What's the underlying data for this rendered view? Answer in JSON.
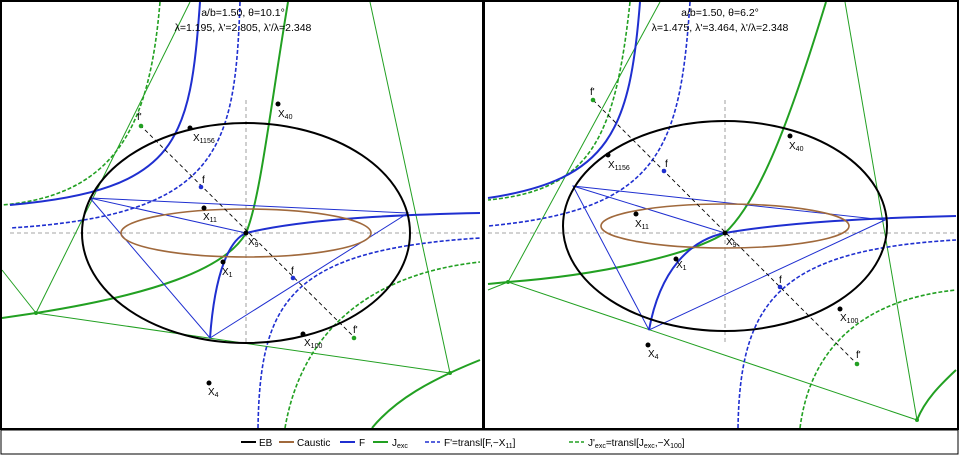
{
  "panels": [
    {
      "title_line1": "a/b=1.50, θ=10.1°",
      "title_line2": "λ=1.195, λ'=2.805, λ'/λ=2.348",
      "points": [
        {
          "text": "X",
          "sub": "1156"
        },
        {
          "text": "X",
          "sub": "11"
        },
        {
          "text": "X",
          "sub": "9"
        },
        {
          "text": "X",
          "sub": "1"
        },
        {
          "text": "X",
          "sub": "40"
        },
        {
          "text": "X",
          "sub": "100"
        },
        {
          "text": "X",
          "sub": "4"
        },
        {
          "text": "f",
          "sub": ""
        },
        {
          "text": "f",
          "sub": ""
        },
        {
          "text": "f'",
          "sub": ""
        },
        {
          "text": "f'",
          "sub": ""
        }
      ]
    },
    {
      "title_line1": "a/b=1.50, θ=6.2°",
      "title_line2": "λ=1.475, λ'=3.464, λ'/λ=2.348",
      "points": [
        {
          "text": "X",
          "sub": "1156"
        },
        {
          "text": "X",
          "sub": "11"
        },
        {
          "text": "X",
          "sub": "9"
        },
        {
          "text": "X",
          "sub": "1"
        },
        {
          "text": "X",
          "sub": "40"
        },
        {
          "text": "X",
          "sub": "100"
        },
        {
          "text": "X",
          "sub": "4"
        },
        {
          "text": "f",
          "sub": ""
        },
        {
          "text": "f",
          "sub": ""
        },
        {
          "text": "f'",
          "sub": ""
        },
        {
          "text": "f'",
          "sub": ""
        }
      ]
    }
  ],
  "legend": {
    "items": [
      {
        "label": "EB",
        "color": "#000000",
        "dash": "solid"
      },
      {
        "label": "Caustic",
        "color": "#a0693c",
        "dash": "solid"
      },
      {
        "label": "F",
        "color": "#1f2fd0",
        "dash": "solid"
      },
      {
        "label_main": "J",
        "label_sub": "exc",
        "color": "#22a022",
        "dash": "solid"
      },
      {
        "label_main": "F'=transl[F,−X",
        "label_sub": "11",
        "label_end": "]",
        "color": "#1f2fd0",
        "dash": "dashed"
      },
      {
        "label_main": "J'",
        "label_sub": "exc",
        "label_mid": "=transl[J",
        "label_sub2": "exc",
        "label_mid2": ",−X",
        "label_sub3": "100",
        "label_end": "]",
        "color": "#22a022",
        "dash": "dashed"
      }
    ]
  },
  "colors": {
    "ellipse": "#000000",
    "caustic": "#a0693c",
    "blue": "#1f2fd0",
    "green": "#22a022",
    "axis": "#888888"
  }
}
